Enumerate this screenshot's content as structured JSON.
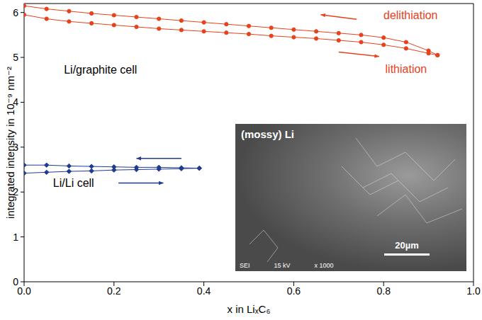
{
  "chart_data": {
    "type": "line",
    "xlabel": "x in LiₓC₆",
    "ylabel": "integrated intensity in 10⁻⁹ nm⁻²",
    "xlim": [
      0,
      1
    ],
    "xticks": [
      {
        "value": 0,
        "label": "0.0"
      },
      0.2,
      0.4,
      0.6,
      0.8,
      {
        "value": 1,
        "label": "1.0"
      }
    ],
    "ylim": [
      0,
      6.2
    ],
    "yticks": [
      0,
      1,
      2,
      3,
      4,
      5,
      6
    ],
    "grid": false,
    "series": [
      {
        "color": "#e8411b",
        "marker": "circle",
        "line_style": "solid",
        "x": [
          0,
          0.05,
          0.1,
          0.15,
          0.2,
          0.25,
          0.3,
          0.35,
          0.4,
          0.45,
          0.5,
          0.55,
          0.6,
          0.65,
          0.7,
          0.75,
          0.8,
          0.85,
          0.9,
          0.92
        ],
        "values": [
          6.15,
          6.08,
          6.03,
          5.98,
          5.94,
          5.9,
          5.86,
          5.82,
          5.78,
          5.74,
          5.7,
          5.66,
          5.62,
          5.58,
          5.54,
          5.5,
          5.44,
          5.34,
          5.15,
          5.05
        ]
      },
      {
        "color": "#e8411b",
        "marker": "circle",
        "line_style": "solid",
        "x": [
          0,
          0.05,
          0.1,
          0.15,
          0.2,
          0.25,
          0.3,
          0.35,
          0.4,
          0.45,
          0.5,
          0.55,
          0.6,
          0.65,
          0.7,
          0.75,
          0.8,
          0.85,
          0.9,
          0.92
        ],
        "values": [
          5.95,
          5.86,
          5.8,
          5.76,
          5.72,
          5.68,
          5.64,
          5.61,
          5.58,
          5.55,
          5.52,
          5.48,
          5.45,
          5.42,
          5.38,
          5.34,
          5.28,
          5.2,
          5.09,
          5.05
        ]
      },
      {
        "color": "#1f3a93",
        "marker": "diamond",
        "line_style": "solid",
        "x": [
          0,
          0.05,
          0.1,
          0.15,
          0.2,
          0.25,
          0.3,
          0.35,
          0.39
        ],
        "values": [
          2.6,
          2.6,
          2.58,
          2.57,
          2.56,
          2.55,
          2.55,
          2.54,
          2.53
        ]
      },
      {
        "color": "#1f3a93",
        "marker": "diamond",
        "line_style": "solid",
        "x": [
          0,
          0.05,
          0.1,
          0.15,
          0.2,
          0.25,
          0.3,
          0.35,
          0.39
        ],
        "values": [
          2.42,
          2.44,
          2.46,
          2.47,
          2.49,
          2.5,
          2.51,
          2.52,
          2.53
        ]
      }
    ],
    "annotations": [
      {
        "text": "delithiation",
        "x": 0.86,
        "y": 5.95,
        "color": "#e8411b"
      },
      {
        "text": "lithiation",
        "x": 0.85,
        "y": 4.75,
        "color": "#e8411b"
      },
      {
        "text": "Li/graphite cell",
        "x": 0.17,
        "y": 4.72,
        "color": "#000000"
      },
      {
        "text": "Li/Li cell",
        "x": 0.11,
        "y": 2.2,
        "color": "#000000"
      }
    ],
    "arrows": [
      {
        "x1": 0.74,
        "y1": 5.85,
        "x2": 0.66,
        "y2": 5.95,
        "color": "#e8411b"
      },
      {
        "x1": 0.7,
        "y1": 5.12,
        "x2": 0.79,
        "y2": 5.02,
        "color": "#e8411b"
      },
      {
        "x1": 0.35,
        "y1": 2.75,
        "x2": 0.25,
        "y2": 2.75,
        "color": "#1f3a93"
      },
      {
        "x1": 0.21,
        "y1": 2.2,
        "x2": 0.31,
        "y2": 2.2,
        "color": "#1f3a93"
      }
    ],
    "inset": {
      "title": "(mossy) Li",
      "scale_bar": "20µm",
      "footer": [
        "SEI",
        "15 kV",
        "x 1000"
      ]
    }
  }
}
